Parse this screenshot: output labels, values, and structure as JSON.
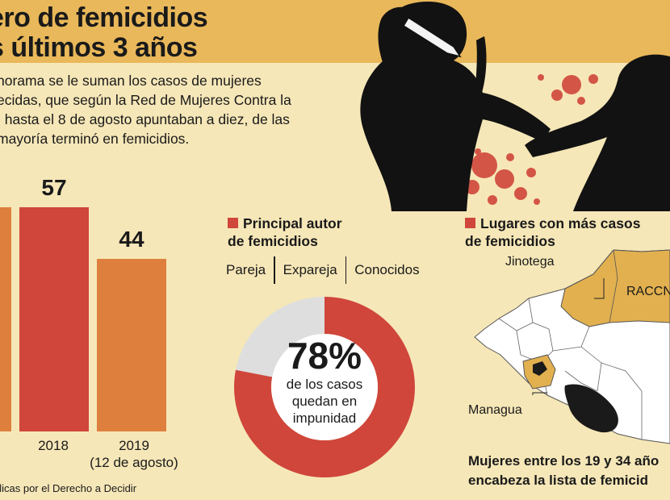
{
  "header": {
    "title_line1": "ero de femicidios",
    "title_line2": "s últimos 3 años"
  },
  "intro": {
    "line1": "norama se le suman los casos de mujeres",
    "line2": "ecidas, que según la Red de Mujeres Contra la",
    "line3": ", hasta el 8 de agosto apuntaban a diez, de las",
    "line4": "mayoría terminó en femicidios."
  },
  "chart_data": {
    "type": "bar",
    "categories": [
      "",
      "2018",
      "2019\n(12 de agosto)"
    ],
    "values": [
      null,
      57,
      44
    ],
    "value_labels": [
      "",
      "57",
      "44"
    ],
    "colors": [
      "#de7f3d",
      "#d0463a",
      "#de7f3d"
    ],
    "title": "",
    "xlabel": "",
    "ylabel": "",
    "ylim": [
      0,
      60
    ]
  },
  "xlabels": {
    "bar2": "2018",
    "bar3_line1": "2019",
    "bar3_line2": "(12 de agosto)"
  },
  "source": {
    "text": "ólicas por el Derecho a Decidir"
  },
  "authors": {
    "title_line1": "Principal autor",
    "title_line2": "de femicidios",
    "items": [
      "Pareja",
      "Expareja",
      "Conocidos"
    ]
  },
  "impunity": {
    "percent": "78%",
    "value": 78,
    "caption_line1": "de los casos",
    "caption_line2": "quedan en",
    "caption_line3": "impunidad"
  },
  "places": {
    "title_line1": "Lugares con más casos",
    "title_line2": "de femicidios",
    "labels": [
      "Jinotega",
      "RACCN",
      "Managua"
    ]
  },
  "bottom_note": {
    "line1": "Mujeres entre los 19 y 34 año",
    "line2": "encabeza la lista de femicid"
  },
  "colors": {
    "background": "#f6e7b8",
    "title_band": "#e9b85a",
    "bar_orange": "#de7f3d",
    "bar_red": "#d0463a",
    "donut_red": "#d0463a",
    "donut_gray": "#dedede",
    "map_highlight": "#e2b04f"
  }
}
